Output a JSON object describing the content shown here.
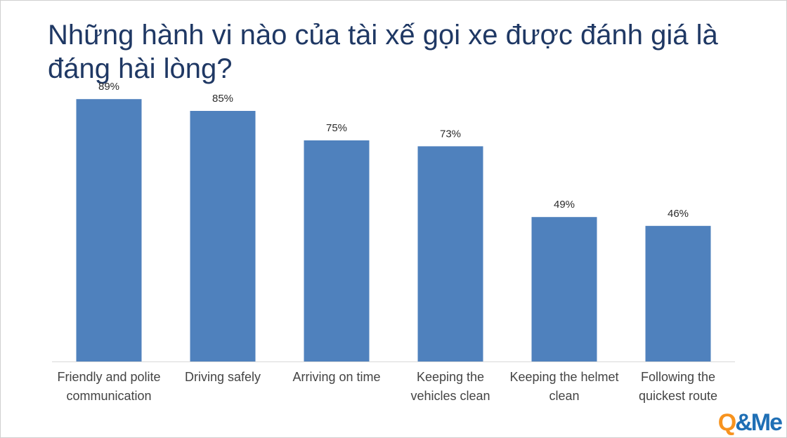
{
  "title": "Những hành vi nào của tài xế gọi xe được đánh giá là đáng hài lòng?",
  "logo": {
    "q": "Q",
    "amp": "&",
    "me": "Me"
  },
  "colors": {
    "bar": "#4f81bd",
    "title": "#1f3864",
    "axis": "#d9d9d9"
  },
  "chart_data": {
    "type": "bar",
    "categories": [
      [
        "Friendly and polite",
        "communication"
      ],
      [
        "Driving safely"
      ],
      [
        "Arriving on time"
      ],
      [
        "Keeping the",
        "vehicles clean"
      ],
      [
        "Keeping the helmet",
        "clean"
      ],
      [
        "Following the",
        "quickest route"
      ]
    ],
    "values": [
      89,
      85,
      75,
      73,
      49,
      46
    ],
    "data_labels": [
      "89%",
      "85%",
      "75%",
      "73%",
      "49%",
      "46%"
    ],
    "ylim": [
      0,
      100
    ],
    "grid": false,
    "legend": "none"
  }
}
